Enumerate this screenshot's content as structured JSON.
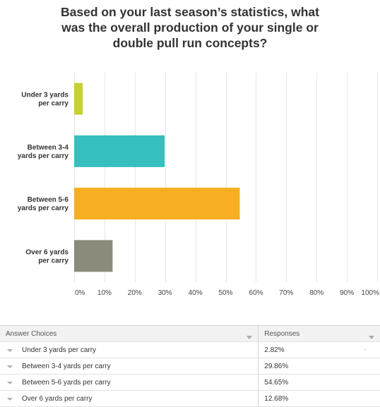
{
  "chart_data": {
    "type": "bar",
    "orientation": "horizontal",
    "title_lines": [
      "Based on your last season’s statistics, what",
      "was the overall production of your single or",
      "double pull run concepts?"
    ],
    "categories": [
      [
        "Under 3 yards",
        "per carry"
      ],
      [
        "Between 3-4",
        "yards per carry"
      ],
      [
        "Between 5-6",
        "yards per carry"
      ],
      [
        "Over 6 yards",
        "per carry"
      ]
    ],
    "values": [
      2.82,
      29.86,
      54.65,
      12.68
    ],
    "colors": [
      "#c5d22f",
      "#35bfbf",
      "#f7ae21",
      "#8a8b7a"
    ],
    "xlim": [
      0,
      100
    ],
    "xticks": [
      "0%",
      "10%",
      "20%",
      "30%",
      "40%",
      "50%",
      "60%",
      "70%",
      "80%",
      "90%",
      "100%"
    ],
    "grid": true
  },
  "table": {
    "headers": [
      "Answer Choices",
      "Responses"
    ],
    "rows": [
      {
        "choice": "Under 3 yards per carry",
        "response": "2.82%"
      },
      {
        "choice": "Between 3-4 yards per carry",
        "response": "29.86%"
      },
      {
        "choice": "Between 5-6 yards per carry",
        "response": "54.65%"
      },
      {
        "choice": "Over 6 yards per carry",
        "response": "12.68%"
      }
    ]
  }
}
